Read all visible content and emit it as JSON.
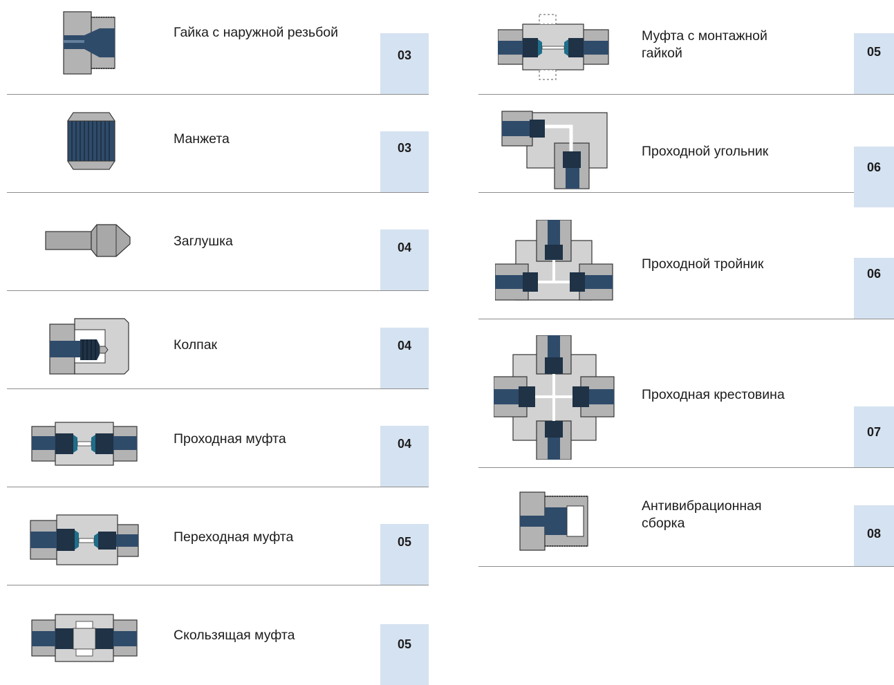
{
  "colors": {
    "steel": "#b3b3b3",
    "steel_light": "#d2d2d2",
    "tube": "#2f4b6a",
    "teal": "#1f6e8a",
    "page_box": "#d5e2f1",
    "divider": "#8c8c8c"
  },
  "left_items": [
    {
      "label": "Гайка с наружной резьбой",
      "page": "03",
      "icon": "male-nut-icon"
    },
    {
      "label": "Манжета",
      "page": "03",
      "icon": "sleeve-icon"
    },
    {
      "label": "Заглушка",
      "page": "04",
      "icon": "plug-icon"
    },
    {
      "label": "Колпак",
      "page": "04",
      "icon": "cap-icon"
    },
    {
      "label": "Проходная муфта",
      "page": "04",
      "icon": "union-icon"
    },
    {
      "label": "Переходная муфта",
      "page": "05",
      "icon": "reducing-union-icon"
    },
    {
      "label": "Скользящая муфта",
      "page": "05",
      "icon": "slip-union-icon"
    }
  ],
  "right_items": [
    {
      "label": "Муфта с монтажной гайкой",
      "page": "05",
      "icon": "bulkhead-union-icon"
    },
    {
      "label": "Проходной угольник",
      "page": "06",
      "icon": "elbow-icon"
    },
    {
      "label": "Проходной тройник",
      "page": "06",
      "icon": "tee-icon"
    },
    {
      "label": "Проходная крестовина",
      "page": "07",
      "icon": "cross-icon"
    },
    {
      "label": "Антивибрационная сборка",
      "page": "08",
      "icon": "anti-vibration-icon"
    }
  ]
}
